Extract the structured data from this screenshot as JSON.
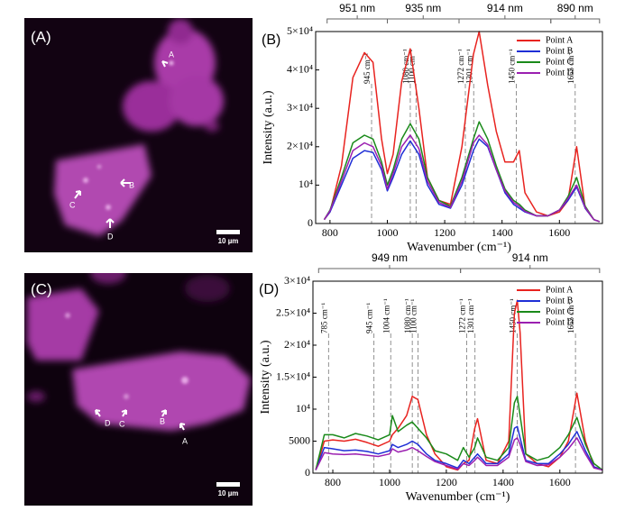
{
  "images": [
    {
      "panel": "(A)",
      "points": [
        "A",
        "B",
        "C",
        "D"
      ],
      "scale_bar": "10 µm"
    },
    {
      "panel": "(C)",
      "points": [
        "D",
        "C",
        "B",
        "A"
      ],
      "scale_bar": "10 µm"
    }
  ],
  "chart_data": [
    {
      "type": "line",
      "panel": "(B)",
      "ylabel": "Intensity (a.u.)",
      "xlabel": "Wavenumber (cm⁻¹)",
      "xlim": [
        750,
        1750
      ],
      "xticks": [
        800,
        1000,
        1200,
        1400,
        1600
      ],
      "ylim": [
        0,
        50000
      ],
      "yticks": [
        0,
        {
          "value": 10000,
          "label": "10⁴"
        },
        {
          "value": 20000,
          "label": "2×10⁴"
        },
        {
          "value": 30000,
          "label": "3×10⁴"
        },
        {
          "value": 40000,
          "label": "4×10⁴"
        },
        {
          "value": 50000,
          "label": "5×10⁴"
        }
      ],
      "legend": "upper right",
      "brackets": [
        {
          "label": "951 nm",
          "range": [
            790,
            1000
          ]
        },
        {
          "label": "935 nm",
          "range": [
            1000,
            1250
          ]
        },
        {
          "label": "914 nm",
          "range": [
            1250,
            1570
          ]
        },
        {
          "label": "890 nm",
          "range": [
            1570,
            1740
          ]
        }
      ],
      "annotations": [
        {
          "x": 945,
          "label": "945 cm⁻¹"
        },
        {
          "x": 1080,
          "label": "1080 cm⁻¹"
        },
        {
          "x": 1100,
          "label": "1100 cm⁻¹"
        },
        {
          "x": 1272,
          "label": "1272 cm⁻¹"
        },
        {
          "x": 1301,
          "label": "1301 cm⁻¹"
        },
        {
          "x": 1450,
          "label": "1450 cm⁻¹"
        },
        {
          "x": 1655,
          "label": "1655 cm⁻¹"
        }
      ],
      "x": [
        780,
        800,
        840,
        880,
        920,
        950,
        980,
        1000,
        1020,
        1050,
        1080,
        1110,
        1140,
        1180,
        1220,
        1260,
        1300,
        1320,
        1350,
        1380,
        1410,
        1440,
        1460,
        1480,
        1520,
        1560,
        1600,
        1630,
        1660,
        1690,
        1720,
        1740
      ],
      "series": [
        {
          "name": "Point A",
          "color": "#e8231f",
          "values": [
            1000,
            3000,
            15000,
            38000,
            44500,
            42000,
            22000,
            13000,
            18000,
            37000,
            45500,
            30000,
            12000,
            6000,
            5000,
            20000,
            44000,
            50000,
            36000,
            24000,
            16000,
            16000,
            19000,
            8000,
            3000,
            2000,
            3000,
            6000,
            20000,
            4000,
            1000,
            500
          ]
        },
        {
          "name": "Point B",
          "color": "#1f2fd6",
          "values": [
            1000,
            3000,
            10000,
            17000,
            19000,
            18500,
            14000,
            8500,
            12000,
            18000,
            21500,
            18000,
            10000,
            5000,
            4000,
            10000,
            19000,
            22000,
            20000,
            14000,
            8000,
            5000,
            4000,
            3000,
            2000,
            2000,
            3500,
            6000,
            9500,
            4000,
            1000,
            500
          ]
        },
        {
          "name": "Point C",
          "color": "#1a8a1a",
          "values": [
            1000,
            3500,
            12000,
            21000,
            23000,
            22000,
            16000,
            10000,
            14000,
            22000,
            26000,
            22000,
            12000,
            6000,
            4500,
            12000,
            22000,
            26500,
            22000,
            15000,
            9000,
            6000,
            5000,
            3500,
            2000,
            2000,
            3500,
            7000,
            12000,
            4500,
            1000,
            500
          ]
        },
        {
          "name": "Point D",
          "color": "#9b1fb0",
          "values": [
            1000,
            3300,
            11000,
            19000,
            21000,
            20000,
            15000,
            9000,
            13000,
            20000,
            23000,
            19500,
            11000,
            5500,
            4200,
            11000,
            21000,
            23000,
            20500,
            14000,
            8500,
            5500,
            4500,
            3200,
            2000,
            2000,
            3500,
            6500,
            10000,
            4200,
            1000,
            500
          ]
        }
      ]
    },
    {
      "type": "line",
      "panel": "(D)",
      "ylabel": "Intensity (a.u.)",
      "xlabel": "Wavenumber (cm⁻¹)",
      "xlim": [
        730,
        1750
      ],
      "xticks": [
        800,
        1000,
        1200,
        1400,
        1600
      ],
      "ylim": [
        0,
        30000
      ],
      "yticks": [
        0,
        5000,
        {
          "value": 10000,
          "label": "10⁴"
        },
        {
          "value": 15000,
          "label": "1.5×10⁴"
        },
        {
          "value": 20000,
          "label": "2×10⁴"
        },
        {
          "value": 25000,
          "label": "2.5×10⁴"
        },
        {
          "value": 30000,
          "label": "3×10⁴"
        }
      ],
      "legend": "upper right",
      "brackets": [
        {
          "label": "949 nm",
          "range": [
            750,
            1250
          ]
        },
        {
          "label": "914 nm",
          "range": [
            1250,
            1740
          ]
        }
      ],
      "annotations": [
        {
          "x": 785,
          "label": "785 cm⁻¹"
        },
        {
          "x": 945,
          "label": "945 cm⁻¹"
        },
        {
          "x": 1004,
          "label": "1004 cm⁻¹"
        },
        {
          "x": 1080,
          "label": "1080 cm⁻¹"
        },
        {
          "x": 1100,
          "label": "1100 cm⁻¹"
        },
        {
          "x": 1272,
          "label": "1272 cm⁻¹"
        },
        {
          "x": 1301,
          "label": "1301 cm⁻¹"
        },
        {
          "x": 1450,
          "label": "1450 cm⁻¹"
        },
        {
          "x": 1655,
          "label": "1655 cm⁻¹"
        }
      ],
      "x": [
        740,
        770,
        800,
        840,
        880,
        920,
        960,
        1000,
        1010,
        1030,
        1060,
        1080,
        1100,
        1130,
        1160,
        1200,
        1240,
        1260,
        1280,
        1300,
        1310,
        1340,
        1380,
        1420,
        1440,
        1450,
        1460,
        1480,
        1520,
        1560,
        1600,
        1630,
        1660,
        1690,
        1720,
        1750
      ],
      "series": [
        {
          "name": "Point A",
          "color": "#e8231f",
          "values": [
            500,
            5000,
            5200,
            5000,
            5300,
            4800,
            4200,
            5000,
            6000,
            7000,
            9000,
            12000,
            11500,
            6000,
            3000,
            1000,
            500,
            1500,
            2000,
            7000,
            8500,
            2000,
            1500,
            5000,
            25000,
            27000,
            22000,
            3000,
            1500,
            1000,
            2500,
            5000,
            12500,
            5000,
            1000,
            500
          ]
        },
        {
          "name": "Point B",
          "color": "#1f2fd6",
          "values": [
            500,
            4000,
            3800,
            3500,
            3600,
            3400,
            3000,
            3500,
            4500,
            4000,
            4500,
            5000,
            4500,
            3000,
            2000,
            1500,
            800,
            2000,
            1500,
            2500,
            3000,
            1500,
            1500,
            3000,
            7000,
            7300,
            5500,
            2000,
            1500,
            1500,
            3000,
            4500,
            6500,
            3500,
            1000,
            500
          ]
        },
        {
          "name": "Point C",
          "color": "#1a8a1a",
          "values": [
            500,
            6000,
            6000,
            5500,
            6200,
            5800,
            5200,
            6000,
            9000,
            6500,
            7500,
            8000,
            7000,
            5500,
            3500,
            3000,
            2000,
            4000,
            2500,
            4000,
            5500,
            2500,
            2000,
            4000,
            11000,
            12000,
            9000,
            3000,
            2000,
            2500,
            4000,
            6000,
            8700,
            4500,
            1500,
            500
          ]
        },
        {
          "name": "Point D",
          "color": "#9b1fb0",
          "values": [
            500,
            3200,
            3000,
            2900,
            3000,
            2800,
            2600,
            3000,
            3800,
            3300,
            3600,
            4000,
            3500,
            2600,
            1800,
            1200,
            600,
            1500,
            1200,
            2000,
            2500,
            1200,
            1200,
            2500,
            5200,
            5500,
            4500,
            1800,
            1200,
            1300,
            2500,
            3800,
            5500,
            3000,
            800,
            500
          ]
        }
      ]
    }
  ]
}
